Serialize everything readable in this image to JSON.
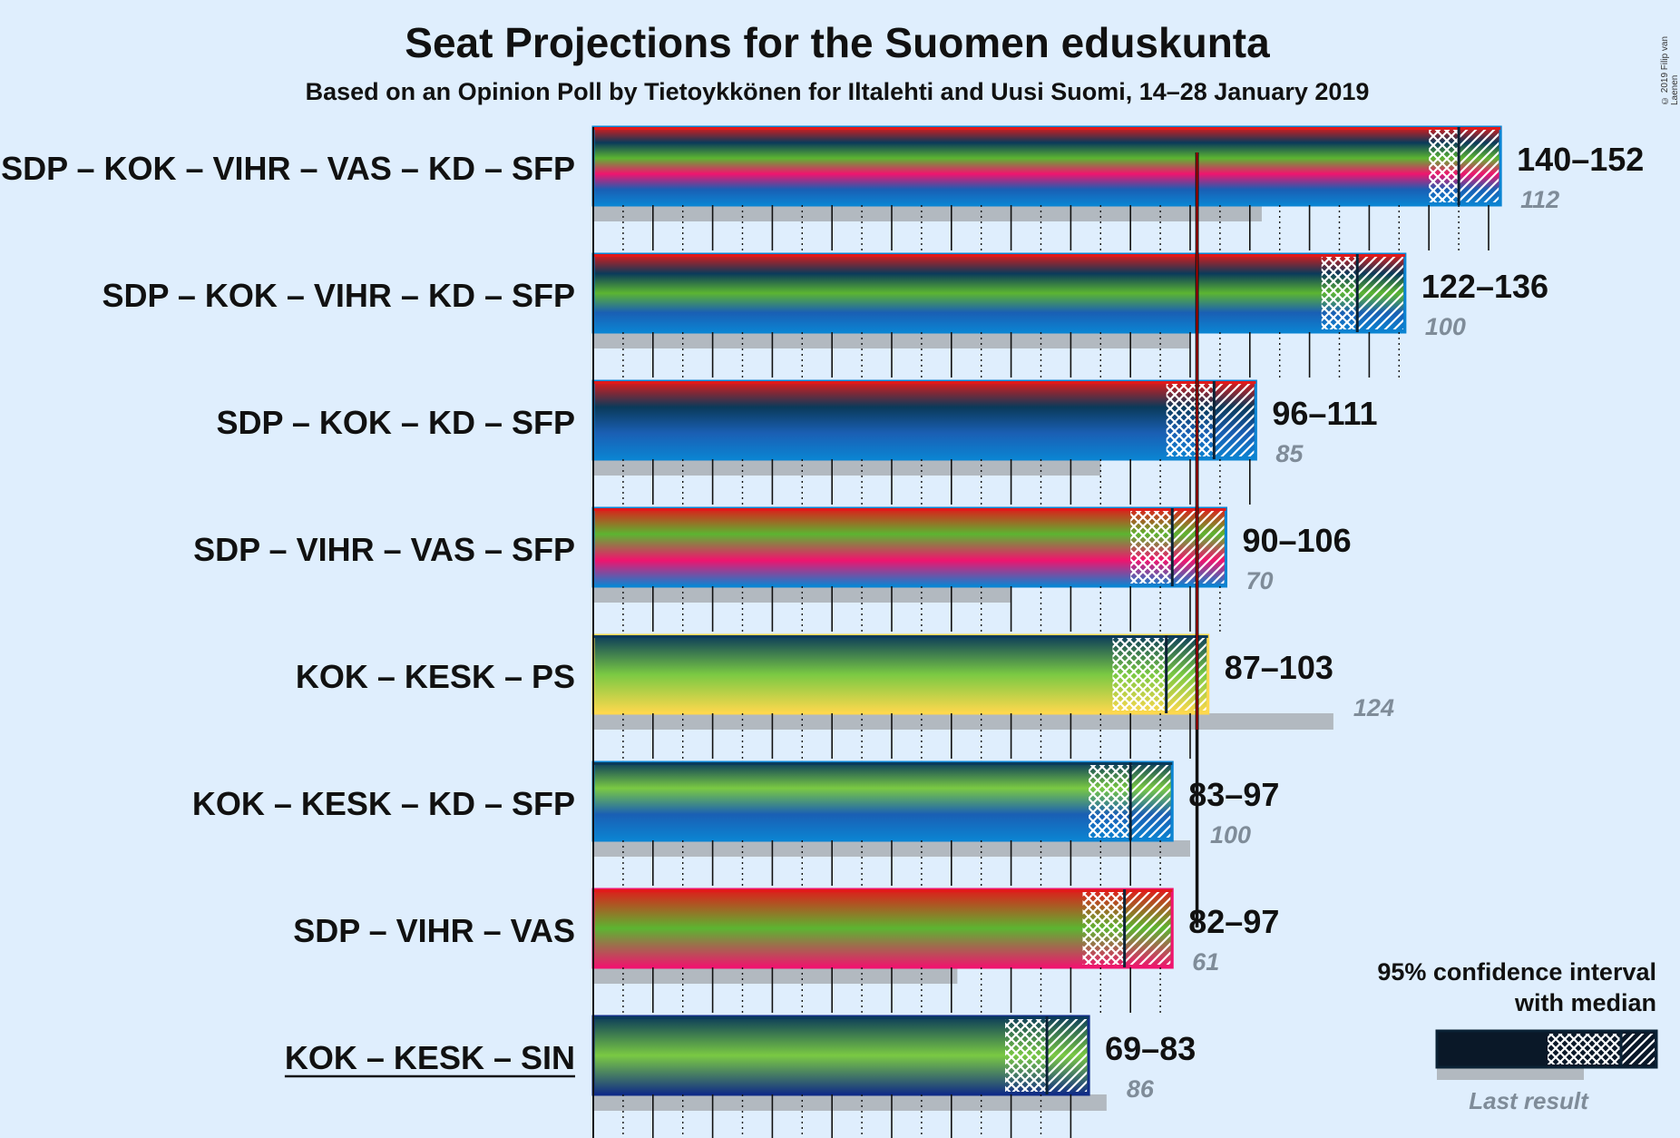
{
  "title": "Seat Projections for the Suomen eduskunta",
  "subtitle": "Based on an Opinion Poll by Tietoykkönen for Iltalehti and Uusi Suomi, 14–28 January 2019",
  "copyright": "© 2019 Filip van Laenen",
  "legend": {
    "title_line1": "95% confidence interval",
    "title_line2": "with median",
    "last_result": "Last result"
  },
  "colors": {
    "SDP": "#e11a1a",
    "KOK": "#0a3a5a",
    "VIHR": "#5cb531",
    "VAS": "#f0146e",
    "KD": "#1a5fb4",
    "SFP": "#0b84d2",
    "KESK": "#7ac943",
    "PS": "#ffd84d",
    "SIN": "#102c86",
    "last_result": "#b2b9c0",
    "background": "#dfeefd"
  },
  "chart_data": {
    "type": "bar",
    "majority": 101,
    "xlim": [
      0,
      152
    ],
    "coalitions": [
      {
        "label": "SDP – KOK – VIHR – VAS – KD – SFP",
        "parties": [
          "SDP",
          "KOK",
          "VIHR",
          "VAS",
          "KD",
          "SFP"
        ],
        "low": 140,
        "median": 145,
        "high": 152,
        "range_label": "140–152",
        "last": 112,
        "last_label": "112",
        "underline": false
      },
      {
        "label": "SDP – KOK – VIHR – KD – SFP",
        "parties": [
          "SDP",
          "KOK",
          "VIHR",
          "KD",
          "SFP"
        ],
        "low": 122,
        "median": 128,
        "high": 136,
        "range_label": "122–136",
        "last": 100,
        "last_label": "100",
        "underline": false
      },
      {
        "label": "SDP – KOK – KD – SFP",
        "parties": [
          "SDP",
          "KOK",
          "KD",
          "SFP"
        ],
        "low": 96,
        "median": 104,
        "high": 111,
        "range_label": "96–111",
        "last": 85,
        "last_label": "85",
        "underline": false
      },
      {
        "label": "SDP – VIHR – VAS – SFP",
        "parties": [
          "SDP",
          "VIHR",
          "VAS",
          "SFP"
        ],
        "low": 90,
        "median": 97,
        "high": 106,
        "range_label": "90–106",
        "last": 70,
        "last_label": "70",
        "underline": false
      },
      {
        "label": "KOK – KESK – PS",
        "parties": [
          "KOK",
          "KESK",
          "PS"
        ],
        "low": 87,
        "median": 96,
        "high": 103,
        "range_label": "87–103",
        "last": 124,
        "last_label": "124",
        "underline": false
      },
      {
        "label": "KOK – KESK – KD – SFP",
        "parties": [
          "KOK",
          "KESK",
          "KD",
          "SFP"
        ],
        "low": 83,
        "median": 90,
        "high": 97,
        "range_label": "83–97",
        "last": 100,
        "last_label": "100",
        "underline": false
      },
      {
        "label": "SDP – VIHR – VAS",
        "parties": [
          "SDP",
          "VIHR",
          "VAS"
        ],
        "low": 82,
        "median": 89,
        "high": 97,
        "range_label": "82–97",
        "last": 61,
        "last_label": "61",
        "underline": false
      },
      {
        "label": "KOK – KESK – SIN",
        "parties": [
          "KOK",
          "KESK",
          "SIN"
        ],
        "low": 69,
        "median": 76,
        "high": 83,
        "range_label": "69–83",
        "last": 86,
        "last_label": "86",
        "underline": true
      }
    ]
  }
}
